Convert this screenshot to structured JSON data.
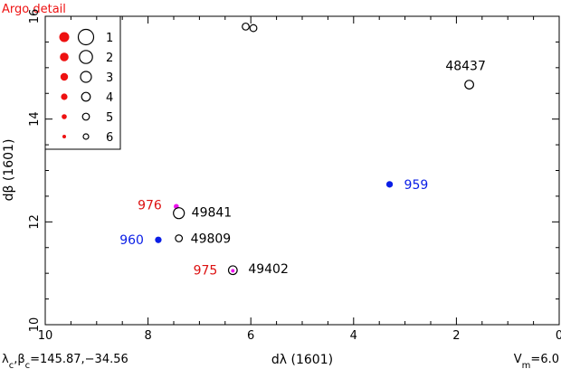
{
  "chart_data": {
    "type": "scatter",
    "title": "Argo detail",
    "xlabel": "dλ (1601)",
    "ylabel": "dβ (1601)",
    "xlim": [
      10,
      0
    ],
    "ylim": [
      10,
      16
    ],
    "x_ticks": [
      10,
      8,
      6,
      4,
      2,
      0
    ],
    "y_ticks": [
      10,
      12,
      14,
      16
    ],
    "x_tick_labels": [
      "10",
      "8",
      "6",
      "4",
      "2",
      "0"
    ],
    "y_tick_labels": [
      "10",
      "12",
      "14",
      "16"
    ],
    "footer_left": "λc,βc=145.87,−34.56",
    "footer_right": "Vm=6.0",
    "legend": {
      "placement": "top-left",
      "entries": [
        {
          "label": "1",
          "level": 1
        },
        {
          "label": "2",
          "level": 2
        },
        {
          "label": "3",
          "level": 3
        },
        {
          "label": "4",
          "level": 4
        },
        {
          "label": "5",
          "level": 5
        },
        {
          "label": "6",
          "level": 6
        }
      ]
    },
    "points": [
      {
        "x": 6.1,
        "y": 15.8,
        "style": "open",
        "level": 5,
        "label": "",
        "color": "#000000"
      },
      {
        "x": 5.95,
        "y": 15.77,
        "style": "open",
        "level": 5,
        "label": "",
        "color": "#000000"
      },
      {
        "x": 1.75,
        "y": 14.67,
        "style": "open",
        "level": 4,
        "label": "48437",
        "color": "#000000"
      },
      {
        "x": 3.3,
        "y": 12.73,
        "style": "filled",
        "level": 4,
        "label": "959",
        "color": "#0a1ee6"
      },
      {
        "x": 7.45,
        "y": 12.3,
        "style": "filled",
        "level": 5,
        "label": "976",
        "color": "#ee10ee"
      },
      {
        "x": 7.4,
        "y": 12.17,
        "style": "open",
        "level": 3,
        "label": "49841",
        "color": "#000000"
      },
      {
        "x": 7.8,
        "y": 11.65,
        "style": "filled",
        "level": 4,
        "label": "960",
        "color": "#0a1ee6"
      },
      {
        "x": 7.4,
        "y": 11.68,
        "style": "open",
        "level": 5,
        "label": "49809",
        "color": "#000000"
      },
      {
        "x": 6.35,
        "y": 11.06,
        "style": "open",
        "level": 4,
        "label": "49402",
        "color": "#000000"
      },
      {
        "x": 6.35,
        "y": 11.05,
        "style": "filled",
        "level": 6,
        "label": "975",
        "color": "#ee10ee"
      }
    ],
    "colors": {
      "title": "#ee1111",
      "legend_filled": "#ee1111",
      "red_label": "#dd1111",
      "blue_label": "#0a1ee6",
      "axis": "#000000"
    }
  }
}
